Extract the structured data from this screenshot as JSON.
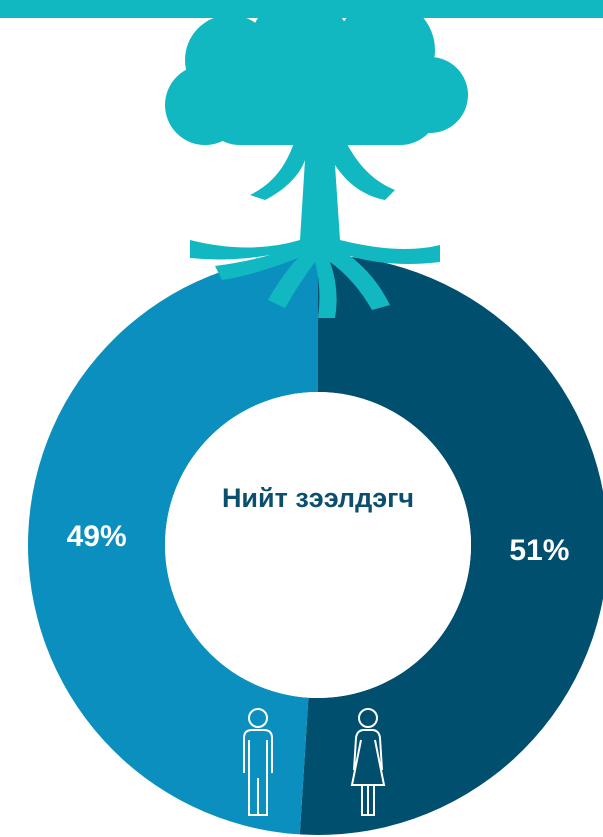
{
  "chart_data": {
    "type": "donut",
    "center_label": "Нийт зээлдэгч",
    "values": [
      51,
      49
    ],
    "value_labels": [
      "51%",
      "49%"
    ],
    "colors": [
      "#004f6e",
      "#0b8fbf"
    ]
  }
}
